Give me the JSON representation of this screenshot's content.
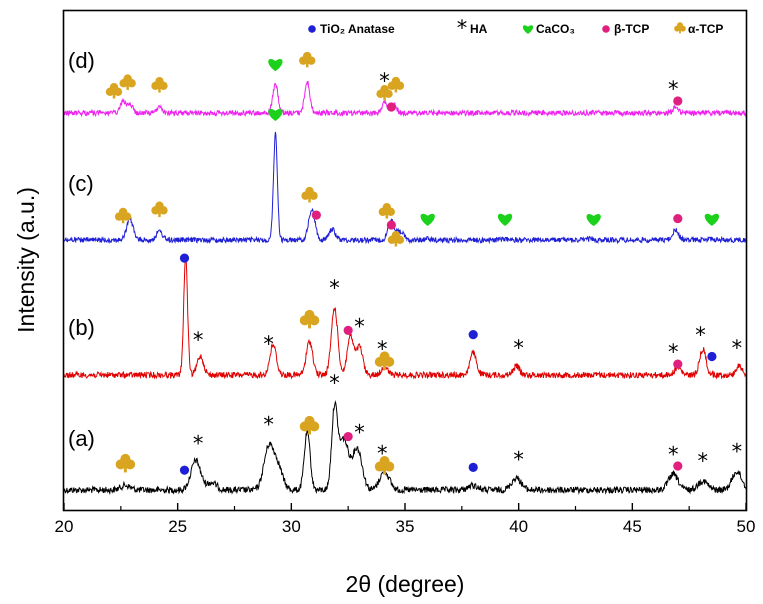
{
  "chart_data": {
    "type": "line",
    "title": "",
    "xlabel": "2θ (degree)",
    "ylabel": "Intensity (a.u.)",
    "xlim": [
      20,
      50
    ],
    "xticks": [
      20,
      25,
      30,
      35,
      40,
      45,
      50
    ],
    "yticks": [],
    "grid": false,
    "legend": {
      "position": "top-right",
      "entries": [
        {
          "marker": "circle",
          "label": "TiO₂ Anatase",
          "color": "#1f1fd6"
        },
        {
          "marker": "asterisk",
          "label": "HA",
          "color": "#000000"
        },
        {
          "marker": "heart",
          "label": "CaCO₃",
          "color": "#1bd11b"
        },
        {
          "marker": "circle",
          "label": "β-TCP",
          "color": "#e0207f"
        },
        {
          "marker": "club",
          "label": "α-TCP",
          "color": "#d9a520"
        }
      ]
    },
    "series": [
      {
        "name": "(a)",
        "color": "#000000",
        "baseline": 0.0,
        "peaks": [
          [
            22.7,
            0.05
          ],
          [
            25.8,
            0.32
          ],
          [
            26.5,
            0.08
          ],
          [
            29.0,
            0.45
          ],
          [
            29.4,
            0.25
          ],
          [
            30.7,
            0.63
          ],
          [
            31.9,
            0.85
          ],
          [
            32.3,
            0.55
          ],
          [
            32.9,
            0.45
          ],
          [
            34.1,
            0.2
          ],
          [
            38.0,
            0.05
          ],
          [
            39.9,
            0.13
          ],
          [
            46.8,
            0.17
          ],
          [
            48.1,
            0.1
          ],
          [
            49.6,
            0.2
          ]
        ]
      },
      {
        "name": "(b)",
        "color": "#e00000",
        "baseline": 0.0,
        "peaks": [
          [
            25.35,
            1.05
          ],
          [
            26.0,
            0.17
          ],
          [
            29.2,
            0.27
          ],
          [
            30.8,
            0.3
          ],
          [
            31.9,
            0.6
          ],
          [
            32.6,
            0.35
          ],
          [
            33.0,
            0.25
          ],
          [
            34.1,
            0.07
          ],
          [
            38.0,
            0.2
          ],
          [
            39.9,
            0.08
          ],
          [
            47.0,
            0.07
          ],
          [
            48.1,
            0.23
          ],
          [
            49.7,
            0.08
          ]
        ]
      },
      {
        "name": "(c)",
        "color": "#1f1fd6",
        "baseline": 0.0,
        "peaks": [
          [
            22.9,
            0.2
          ],
          [
            24.2,
            0.08
          ],
          [
            29.3,
            1.0
          ],
          [
            30.9,
            0.28
          ],
          [
            31.8,
            0.1
          ],
          [
            34.4,
            0.18
          ],
          [
            34.8,
            0.08
          ],
          [
            36.0,
            0.01
          ],
          [
            39.4,
            0.01
          ],
          [
            43.2,
            0.01
          ],
          [
            46.9,
            0.09
          ],
          [
            48.5,
            0.01
          ]
        ]
      },
      {
        "name": "(d)",
        "color": "#ee22ee",
        "baseline": 0.0,
        "peaks": [
          [
            22.6,
            0.2
          ],
          [
            22.9,
            0.15
          ],
          [
            24.2,
            0.1
          ],
          [
            29.3,
            0.48
          ],
          [
            30.7,
            0.52
          ],
          [
            34.1,
            0.2
          ],
          [
            34.5,
            0.15
          ],
          [
            46.9,
            0.1
          ]
        ]
      }
    ],
    "annotations": [
      {
        "series": "(a)",
        "marker": "club",
        "x": 22.7
      },
      {
        "series": "(a)",
        "marker": "circle-blue",
        "x": 25.3
      },
      {
        "series": "(a)",
        "marker": "asterisk",
        "x": 25.9
      },
      {
        "series": "(a)",
        "marker": "asterisk",
        "x": 29.0
      },
      {
        "series": "(a)",
        "marker": "club",
        "x": 30.8
      },
      {
        "series": "(a)",
        "marker": "asterisk",
        "x": 31.9
      },
      {
        "series": "(a)",
        "marker": "circle-magenta",
        "x": 32.5
      },
      {
        "series": "(a)",
        "marker": "asterisk",
        "x": 33.0
      },
      {
        "series": "(a)",
        "marker": "asterisk",
        "x": 34.0
      },
      {
        "series": "(a)",
        "marker": "club",
        "x": 34.1
      },
      {
        "series": "(a)",
        "marker": "circle-blue",
        "x": 38.0
      },
      {
        "series": "(a)",
        "marker": "asterisk",
        "x": 40.0
      },
      {
        "series": "(a)",
        "marker": "asterisk",
        "x": 46.8
      },
      {
        "series": "(a)",
        "marker": "circle-magenta",
        "x": 47.0
      },
      {
        "series": "(a)",
        "marker": "asterisk",
        "x": 48.1
      },
      {
        "series": "(a)",
        "marker": "asterisk",
        "x": 49.6
      },
      {
        "series": "(b)",
        "marker": "circle-blue",
        "x": 25.3
      },
      {
        "series": "(b)",
        "marker": "asterisk",
        "x": 25.9
      },
      {
        "series": "(b)",
        "marker": "asterisk",
        "x": 29.0
      },
      {
        "series": "(b)",
        "marker": "club",
        "x": 30.8
      },
      {
        "series": "(b)",
        "marker": "asterisk",
        "x": 31.9
      },
      {
        "series": "(b)",
        "marker": "circle-magenta",
        "x": 32.5
      },
      {
        "series": "(b)",
        "marker": "asterisk",
        "x": 33.0
      },
      {
        "series": "(b)",
        "marker": "asterisk",
        "x": 34.0
      },
      {
        "series": "(b)",
        "marker": "club",
        "x": 34.1
      },
      {
        "series": "(b)",
        "marker": "circle-blue",
        "x": 38.0
      },
      {
        "series": "(b)",
        "marker": "asterisk",
        "x": 40.0
      },
      {
        "series": "(b)",
        "marker": "asterisk",
        "x": 46.8
      },
      {
        "series": "(b)",
        "marker": "circle-magenta",
        "x": 47.0
      },
      {
        "series": "(b)",
        "marker": "asterisk",
        "x": 48.0
      },
      {
        "series": "(b)",
        "marker": "circle-blue",
        "x": 48.5
      },
      {
        "series": "(b)",
        "marker": "asterisk",
        "x": 49.6
      },
      {
        "series": "(c)",
        "marker": "club",
        "x": 22.6
      },
      {
        "series": "(c)",
        "marker": "club",
        "x": 24.2
      },
      {
        "series": "(c)",
        "marker": "heart",
        "x": 29.3
      },
      {
        "series": "(c)",
        "marker": "club",
        "x": 30.8
      },
      {
        "series": "(c)",
        "marker": "circle-magenta",
        "x": 31.1
      },
      {
        "series": "(c)",
        "marker": "club",
        "x": 34.2
      },
      {
        "series": "(c)",
        "marker": "circle-magenta",
        "x": 34.4
      },
      {
        "series": "(c)",
        "marker": "club",
        "x": 34.6
      },
      {
        "series": "(c)",
        "marker": "heart",
        "x": 36.0
      },
      {
        "series": "(c)",
        "marker": "heart",
        "x": 39.4
      },
      {
        "series": "(c)",
        "marker": "heart",
        "x": 43.3
      },
      {
        "series": "(c)",
        "marker": "circle-magenta",
        "x": 47.0
      },
      {
        "series": "(c)",
        "marker": "heart",
        "x": 48.5
      },
      {
        "series": "(d)",
        "marker": "club",
        "x": 22.2
      },
      {
        "series": "(d)",
        "marker": "club",
        "x": 22.8
      },
      {
        "series": "(d)",
        "marker": "club",
        "x": 24.2
      },
      {
        "series": "(d)",
        "marker": "heart",
        "x": 29.3
      },
      {
        "series": "(d)",
        "marker": "club",
        "x": 30.7
      },
      {
        "series": "(d)",
        "marker": "asterisk",
        "x": 34.1
      },
      {
        "series": "(d)",
        "marker": "club",
        "x": 34.1
      },
      {
        "series": "(d)",
        "marker": "club",
        "x": 34.6
      },
      {
        "series": "(d)",
        "marker": "circle-magenta",
        "x": 34.4
      },
      {
        "series": "(d)",
        "marker": "asterisk",
        "x": 46.8
      },
      {
        "series": "(d)",
        "marker": "circle-magenta",
        "x": 47.0
      }
    ]
  }
}
